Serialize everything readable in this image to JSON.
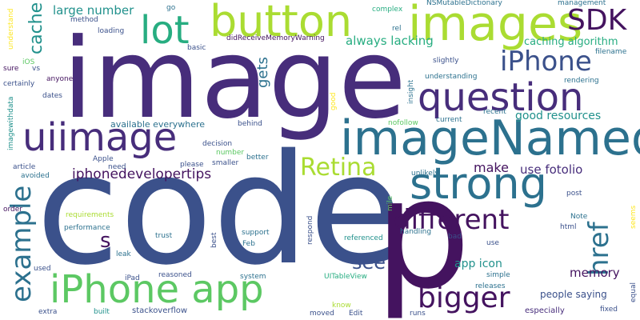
{
  "palette": {
    "dark_purple": "#44135f",
    "purple": "#472d7b",
    "indigo": "#3b518b",
    "blue": "#2c718e",
    "teal": "#21918c",
    "green": "#27ad81",
    "lime_green": "#5cc863",
    "yellow_green": "#aadc32",
    "yellow": "#fde725"
  },
  "words": [
    "code",
    "image",
    "p",
    "imageNamed",
    "images",
    "button",
    "question",
    "uiimage",
    "strong",
    "iPhone app",
    "lot",
    "SDK",
    "iPhone",
    "different",
    "bigger",
    "Retina",
    "href",
    "example",
    "cache",
    "s",
    "gets",
    "large number",
    "always lacking",
    "caching algorithm",
    "iphonedevelopertips",
    "make",
    "use fotolio",
    "see",
    "memory",
    "good resources",
    "available everywhere",
    "app icon",
    "people saying",
    "NSMutableDictionary",
    "management",
    "complex",
    "go",
    "method",
    "loading",
    "didReceiveMemoryWarning",
    "rel",
    "basic",
    "understand",
    "iOS",
    "vs",
    "sure",
    "certainly",
    "anyone",
    "dates",
    "imagewithdata",
    "article",
    "avoided",
    "order",
    "requirements",
    "performance",
    "used",
    "extra",
    "built",
    "stackoverflow",
    "reasoned",
    "iPad",
    "system",
    "UITableView",
    "simple",
    "releases",
    "moved",
    "Edit",
    "runs",
    "know",
    "fixed",
    "especially",
    "equal",
    "seems",
    "post",
    "Note",
    "html",
    "use",
    "bad",
    "referenced",
    "handling",
    "mile",
    "respond",
    "support",
    "Feb",
    "best",
    "trust",
    "leak",
    "need",
    "smaller",
    "Apple",
    "please",
    "decision",
    "number",
    "better",
    "behind",
    "nofollow",
    "current",
    "recent",
    "insight",
    "good",
    "understanding",
    "slightly",
    "rendering",
    "filename",
    "unlikely"
  ]
}
